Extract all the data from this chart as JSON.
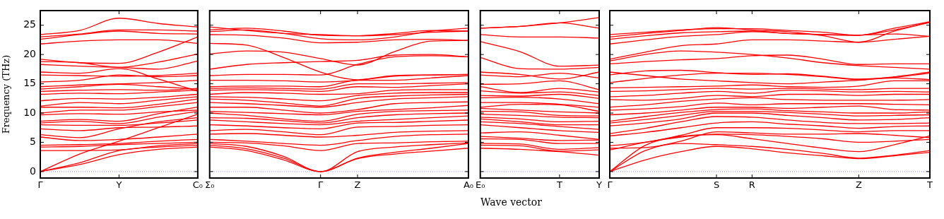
{
  "chart_data": [
    {
      "type": "line",
      "ylabel": "Frequency (THz)",
      "categories": [
        "Γ",
        null,
        "Y",
        null,
        "C₀"
      ],
      "ylim": [
        -1.1,
        27.5
      ],
      "yticks": [
        0,
        5,
        10,
        15,
        20,
        25
      ],
      "grid": false,
      "legend": false,
      "marker": "none",
      "line_style": "solid",
      "ref_lines": [
        {
          "axis": "y",
          "value": 0,
          "color": "#6666ff",
          "line_style": "dotted"
        }
      ],
      "series": [
        {
          "color": "#ff0000",
          "values": [
            0,
            1.2,
            2.9,
            3.8,
            4.2
          ]
        },
        {
          "color": "#ff0000",
          "values": [
            0,
            1.5,
            3.6,
            4.2,
            4.5
          ]
        },
        {
          "color": "#ff0000",
          "values": [
            0,
            3.0,
            5.2,
            7.5,
            9.8
          ]
        },
        {
          "color": "#ff0000",
          "values": [
            3.6,
            3.6,
            3.7,
            4.4,
            4.8
          ]
        },
        {
          "color": "#ff0000",
          "values": [
            4.2,
            4.3,
            4.6,
            4.8,
            5.0
          ]
        },
        {
          "color": "#ff0000",
          "values": [
            4.5,
            4.6,
            4.8,
            5.2,
            5.5
          ]
        },
        {
          "color": "#ff0000",
          "values": [
            5.9,
            5.3,
            5.5,
            5.9,
            6.4
          ]
        },
        {
          "color": "#ff0000",
          "values": [
            6.3,
            5.8,
            7.3,
            8.5,
            9.2
          ]
        },
        {
          "color": "#ff0000",
          "values": [
            7.3,
            7.0,
            7.5,
            7.6,
            7.8
          ]
        },
        {
          "color": "#ff0000",
          "values": [
            8.0,
            7.9,
            7.9,
            8.3,
            8.8
          ]
        },
        {
          "color": "#ff0000",
          "values": [
            8.3,
            8.6,
            8.2,
            9.3,
            10.3
          ]
        },
        {
          "color": "#ff0000",
          "values": [
            8.6,
            8.9,
            8.6,
            9.9,
            11.0
          ]
        },
        {
          "color": "#ff0000",
          "values": [
            9.7,
            9.9,
            9.8,
            10.2,
            10.5
          ]
        },
        {
          "color": "#ff0000",
          "values": [
            10.0,
            10.5,
            10.5,
            11.1,
            11.8
          ]
        },
        {
          "color": "#ff0000",
          "values": [
            11.0,
            11.0,
            10.9,
            11.5,
            12.4
          ]
        },
        {
          "color": "#ff0000",
          "values": [
            11.2,
            11.8,
            11.6,
            12.2,
            12.8
          ]
        },
        {
          "color": "#ff0000",
          "values": [
            12.1,
            12.5,
            12.4,
            12.7,
            13.2
          ]
        },
        {
          "color": "#ff0000",
          "values": [
            13.2,
            13.4,
            13.3,
            13.6,
            13.9
          ]
        },
        {
          "color": "#ff0000",
          "values": [
            13.7,
            13.9,
            14.0,
            13.9,
            14.2
          ]
        },
        {
          "color": "#ff0000",
          "values": [
            14.1,
            14.5,
            14.9,
            14.5,
            14.1
          ]
        },
        {
          "color": "#ff0000",
          "values": [
            14.5,
            14.8,
            15.0,
            15.2,
            15.6
          ]
        },
        {
          "color": "#ff0000",
          "values": [
            15.3,
            15.6,
            16.5,
            16.2,
            16.4
          ]
        },
        {
          "color": "#ff0000",
          "values": [
            16.5,
            16.4,
            16.3,
            16.4,
            16.8
          ]
        },
        {
          "color": "#ff0000",
          "values": [
            17.0,
            16.8,
            17.6,
            15.8,
            13.7
          ]
        },
        {
          "color": "#ff0000",
          "values": [
            18.3,
            18.0,
            17.8,
            17.5,
            18.9
          ]
        },
        {
          "color": "#ff0000",
          "values": [
            18.8,
            18.6,
            17.8,
            18.7,
            20.1
          ]
        },
        {
          "color": "#ff0000",
          "values": [
            19.2,
            18.6,
            18.5,
            20.4,
            23.0
          ]
        },
        {
          "color": "#ff0000",
          "values": [
            21.8,
            22.3,
            22.5,
            22.5,
            21.9
          ]
        },
        {
          "color": "#ff0000",
          "values": [
            22.6,
            23.4,
            24.0,
            23.6,
            23.5
          ]
        },
        {
          "color": "#ff0000",
          "values": [
            23.0,
            23.5,
            24.2,
            24.2,
            24.0
          ]
        },
        {
          "color": "#ff0000",
          "values": [
            23.4,
            24.1,
            26.2,
            25.3,
            24.7
          ]
        }
      ]
    },
    {
      "type": "line",
      "categories": [
        "Σ₀",
        null,
        null,
        "Γ",
        "Z",
        null,
        null,
        "A₀"
      ],
      "ylim": [
        -1.1,
        27.5
      ],
      "yticks": [
        0,
        5,
        10,
        15,
        20,
        25
      ],
      "tick_labels": "x",
      "grid": false,
      "legend": false,
      "marker": "none",
      "line_style": "solid",
      "ref_lines": [
        {
          "axis": "y",
          "value": 0,
          "color": "#6666ff",
          "line_style": "dotted"
        }
      ],
      "series": [
        {
          "color": "#ff0000",
          "values": [
            4.2,
            3.6,
            2.0,
            0,
            2.2,
            3.0,
            3.5,
            4.0
          ]
        },
        {
          "color": "#ff0000",
          "values": [
            4.5,
            3.9,
            2.3,
            0,
            2.3,
            3.3,
            4.0,
            4.8
          ]
        },
        {
          "color": "#ff0000",
          "values": [
            4.8,
            4.3,
            2.6,
            0,
            3.4,
            4.2,
            4.6,
            4.9
          ]
        },
        {
          "color": "#ff0000",
          "values": [
            5.0,
            4.9,
            4.4,
            3.6,
            4.8,
            4.9,
            5.1,
            5.2
          ]
        },
        {
          "color": "#ff0000",
          "values": [
            5.5,
            5.2,
            4.8,
            4.5,
            5.3,
            6.0,
            6.3,
            6.4
          ]
        },
        {
          "color": "#ff0000",
          "values": [
            6.4,
            6.5,
            6.2,
            5.9,
            6.2,
            6.7,
            6.9,
            7.0
          ]
        },
        {
          "color": "#ff0000",
          "values": [
            7.0,
            7.2,
            6.8,
            6.3,
            7.6,
            7.7,
            7.9,
            8.0
          ]
        },
        {
          "color": "#ff0000",
          "values": [
            8.0,
            7.8,
            7.5,
            7.3,
            8.3,
            8.4,
            8.6,
            8.8
          ]
        },
        {
          "color": "#ff0000",
          "values": [
            8.8,
            8.5,
            8.2,
            8.0,
            8.6,
            8.9,
            9.2,
            9.5
          ]
        },
        {
          "color": "#ff0000",
          "values": [
            9.2,
            9.1,
            8.7,
            8.3,
            9.2,
            9.7,
            9.9,
            10.0
          ]
        },
        {
          "color": "#ff0000",
          "values": [
            10.0,
            9.6,
            9.0,
            8.6,
            9.8,
            10.3,
            10.4,
            10.5
          ]
        },
        {
          "color": "#ff0000",
          "values": [
            10.3,
            10.1,
            9.9,
            9.7,
            10.3,
            10.6,
            10.9,
            11.3
          ]
        },
        {
          "color": "#ff0000",
          "values": [
            11.0,
            11.0,
            10.5,
            10.0,
            10.6,
            11.6,
            11.8,
            11.9
          ]
        },
        {
          "color": "#ff0000",
          "values": [
            11.8,
            11.6,
            11.3,
            11.0,
            11.8,
            12.4,
            12.6,
            12.8
          ]
        },
        {
          "color": "#ff0000",
          "values": [
            12.4,
            12.2,
            11.7,
            11.2,
            12.5,
            12.9,
            13.1,
            13.2
          ]
        },
        {
          "color": "#ff0000",
          "values": [
            12.8,
            12.7,
            12.4,
            12.1,
            13.0,
            13.4,
            13.5,
            13.5
          ]
        },
        {
          "color": "#ff0000",
          "values": [
            13.2,
            13.5,
            13.4,
            13.2,
            13.3,
            13.9,
            14.0,
            14.0
          ]
        },
        {
          "color": "#ff0000",
          "values": [
            13.9,
            14.0,
            13.9,
            13.7,
            14.5,
            14.4,
            14.7,
            15.0
          ]
        },
        {
          "color": "#ff0000",
          "values": [
            14.2,
            14.3,
            14.2,
            14.1,
            15.0,
            15.0,
            15.1,
            15.2
          ]
        },
        {
          "color": "#ff0000",
          "values": [
            14.5,
            14.6,
            14.6,
            14.5,
            15.6,
            15.6,
            16.0,
            16.4
          ]
        },
        {
          "color": "#ff0000",
          "values": [
            15.6,
            15.6,
            15.5,
            15.3,
            15.6,
            16.4,
            16.5,
            16.6
          ]
        },
        {
          "color": "#ff0000",
          "values": [
            16.4,
            16.6,
            16.6,
            16.5,
            18.3,
            19.6,
            19.8,
            19.6
          ]
        },
        {
          "color": "#ff0000",
          "values": [
            17.5,
            18.3,
            18.6,
            18.8,
            19.0,
            19.9,
            20.0,
            19.6
          ]
        },
        {
          "color": "#ff0000",
          "values": [
            20.1,
            20.6,
            20.4,
            19.3,
            18.2,
            20.5,
            22.3,
            22.4
          ]
        },
        {
          "color": "#ff0000",
          "values": [
            21.9,
            21.6,
            19.5,
            17.0,
            15.7,
            16.3,
            16.5,
            16.6
          ]
        },
        {
          "color": "#ff0000",
          "values": [
            23.4,
            23.3,
            22.8,
            22.0,
            22.1,
            22.5,
            22.6,
            22.4
          ]
        },
        {
          "color": "#ff0000",
          "values": [
            23.9,
            24.2,
            23.6,
            22.7,
            22.5,
            23.0,
            24.0,
            24.5
          ]
        },
        {
          "color": "#ff0000",
          "values": [
            24.2,
            24.5,
            24.0,
            23.3,
            23.2,
            23.6,
            24.1,
            24.0
          ]
        },
        {
          "color": "#ff0000",
          "values": [
            24.7,
            24.1,
            23.6,
            23.4,
            23.2,
            23.4,
            23.8,
            24.0
          ]
        }
      ]
    },
    {
      "type": "line",
      "xlabel": "Wave vector",
      "categories": [
        "E₀",
        null,
        "T",
        "Y"
      ],
      "ylim": [
        -1.1,
        27.5
      ],
      "yticks": [
        0,
        5,
        10,
        15,
        20,
        25
      ],
      "tick_labels": "x",
      "grid": false,
      "legend": false,
      "marker": "none",
      "line_style": "solid",
      "ref_lines": [
        {
          "axis": "y",
          "value": 0,
          "color": "#6666ff",
          "line_style": "dotted"
        }
      ],
      "series": [
        {
          "color": "#ff0000",
          "values": [
            4.0,
            3.8,
            3.4,
            2.8
          ]
        },
        {
          "color": "#ff0000",
          "values": [
            4.5,
            4.4,
            3.5,
            3.7
          ]
        },
        {
          "color": "#ff0000",
          "values": [
            4.8,
            4.7,
            3.8,
            4.1
          ]
        },
        {
          "color": "#ff0000",
          "values": [
            5.6,
            5.5,
            4.8,
            4.8
          ]
        },
        {
          "color": "#ff0000",
          "values": [
            6.0,
            5.7,
            5.3,
            5.4
          ]
        },
        {
          "color": "#ff0000",
          "values": [
            6.6,
            6.8,
            6.2,
            5.5
          ]
        },
        {
          "color": "#ff0000",
          "values": [
            8.0,
            7.5,
            7.0,
            6.7
          ]
        },
        {
          "color": "#ff0000",
          "values": [
            8.5,
            8.2,
            7.7,
            7.2
          ]
        },
        {
          "color": "#ff0000",
          "values": [
            9.0,
            8.5,
            8.0,
            8.0
          ]
        },
        {
          "color": "#ff0000",
          "values": [
            9.3,
            9.0,
            8.5,
            8.6
          ]
        },
        {
          "color": "#ff0000",
          "values": [
            9.8,
            9.6,
            9.3,
            9.2
          ]
        },
        {
          "color": "#ff0000",
          "values": [
            10.3,
            10.2,
            9.6,
            9.5
          ]
        },
        {
          "color": "#ff0000",
          "values": [
            10.8,
            10.5,
            10.2,
            10.0
          ]
        },
        {
          "color": "#ff0000",
          "values": [
            11.0,
            11.5,
            11.4,
            10.3
          ]
        },
        {
          "color": "#ff0000",
          "values": [
            11.8,
            11.8,
            11.5,
            11.0
          ]
        },
        {
          "color": "#ff0000",
          "values": [
            12.6,
            12.7,
            12.4,
            11.6
          ]
        },
        {
          "color": "#ff0000",
          "values": [
            13.0,
            12.9,
            13.2,
            12.5
          ]
        },
        {
          "color": "#ff0000",
          "values": [
            13.8,
            13.4,
            13.6,
            13.0
          ]
        },
        {
          "color": "#ff0000",
          "values": [
            14.5,
            13.5,
            14.2,
            13.6
          ]
        },
        {
          "color": "#ff0000",
          "values": [
            14.9,
            15.0,
            15.5,
            14.0
          ]
        },
        {
          "color": "#ff0000",
          "values": [
            16.5,
            16.2,
            16.8,
            16.0
          ]
        },
        {
          "color": "#ff0000",
          "values": [
            17.0,
            16.6,
            15.8,
            17.0
          ]
        },
        {
          "color": "#ff0000",
          "values": [
            19.5,
            17.6,
            17.5,
            17.8
          ]
        },
        {
          "color": "#ff0000",
          "values": [
            22.2,
            20.5,
            18.0,
            18.2
          ]
        },
        {
          "color": "#ff0000",
          "values": [
            23.4,
            23.0,
            23.0,
            22.8
          ]
        },
        {
          "color": "#ff0000",
          "values": [
            24.5,
            24.8,
            25.4,
            24.5
          ]
        },
        {
          "color": "#ff0000",
          "values": [
            24.5,
            24.8,
            25.4,
            26.3
          ]
        }
      ]
    },
    {
      "type": "line",
      "categories": [
        "Γ",
        null,
        null,
        "S",
        "R",
        null,
        null,
        "Z",
        null,
        "T"
      ],
      "ylim": [
        -1.1,
        27.5
      ],
      "yticks": [
        0,
        5,
        10,
        15,
        20,
        25
      ],
      "tick_labels": "x",
      "grid": false,
      "legend": false,
      "marker": "none",
      "line_style": "solid",
      "ref_lines": [
        {
          "axis": "y",
          "value": 0,
          "color": "#6666ff",
          "line_style": "dotted"
        }
      ],
      "series": [
        {
          "color": "#ff0000",
          "values": [
            0,
            2.0,
            3.4,
            4.3,
            3.9,
            3.2,
            2.7,
            2.2,
            2.7,
            3.3
          ]
        },
        {
          "color": "#ff0000",
          "values": [
            0,
            3.6,
            4.8,
            4.6,
            4.3,
            3.8,
            3.1,
            2.3,
            2.8,
            3.6
          ]
        },
        {
          "color": "#ff0000",
          "values": [
            0,
            4.5,
            6.0,
            6.3,
            5.6,
            4.8,
            4.0,
            3.4,
            4.6,
            6.1
          ]
        },
        {
          "color": "#ff0000",
          "values": [
            3.7,
            5.0,
            5.9,
            6.4,
            6.3,
            6.0,
            5.6,
            5.0,
            5.2,
            5.5
          ]
        },
        {
          "color": "#ff0000",
          "values": [
            4.0,
            4.1,
            5.2,
            6.8,
            6.6,
            6.4,
            6.4,
            6.5,
            6.2,
            5.8
          ]
        },
        {
          "color": "#ff0000",
          "values": [
            4.4,
            5.0,
            6.2,
            7.5,
            7.5,
            7.4,
            7.1,
            6.8,
            7.0,
            7.0
          ]
        },
        {
          "color": "#ff0000",
          "values": [
            6.1,
            6.7,
            7.5,
            8.3,
            8.5,
            8.1,
            7.8,
            7.4,
            7.7,
            7.8
          ]
        },
        {
          "color": "#ff0000",
          "values": [
            6.5,
            7.4,
            8.5,
            9.4,
            9.3,
            8.8,
            8.4,
            8.2,
            8.2,
            8.3
          ]
        },
        {
          "color": "#ff0000",
          "values": [
            7.8,
            8.3,
            9.0,
            10.0,
            10.0,
            9.6,
            9.2,
            8.8,
            8.9,
            9.2
          ]
        },
        {
          "color": "#ff0000",
          "values": [
            8.3,
            8.9,
            9.6,
            10.3,
            10.3,
            10.1,
            9.8,
            9.5,
            9.6,
            9.7
          ]
        },
        {
          "color": "#ff0000",
          "values": [
            8.6,
            9.4,
            10.1,
            10.6,
            10.7,
            10.4,
            10.2,
            10.0,
            10.0,
            10.2
          ]
        },
        {
          "color": "#ff0000",
          "values": [
            9.7,
            10.0,
            10.5,
            11.0,
            11.0,
            10.8,
            11.0,
            11.2,
            10.6,
            10.5
          ]
        },
        {
          "color": "#ff0000",
          "values": [
            10.5,
            10.7,
            11.1,
            11.7,
            11.4,
            11.6,
            11.6,
            11.6,
            11.5,
            11.4
          ]
        },
        {
          "color": "#ff0000",
          "values": [
            11.0,
            11.4,
            12.0,
            12.4,
            12.6,
            12.3,
            12.2,
            12.2,
            12.2,
            12.3
          ]
        },
        {
          "color": "#ff0000",
          "values": [
            12.3,
            12.2,
            12.5,
            13.0,
            12.8,
            13.2,
            13.2,
            13.0,
            13.2,
            13.2
          ]
        },
        {
          "color": "#ff0000",
          "values": [
            12.8,
            13.0,
            13.4,
            13.7,
            13.4,
            13.9,
            13.8,
            13.6,
            13.7,
            13.6
          ]
        },
        {
          "color": "#ff0000",
          "values": [
            13.7,
            13.8,
            14.0,
            14.2,
            14.1,
            14.2,
            14.1,
            14.0,
            14.2,
            14.2
          ]
        },
        {
          "color": "#ff0000",
          "values": [
            14.3,
            14.4,
            14.5,
            14.6,
            14.8,
            14.5,
            14.4,
            14.6,
            15.5,
            15.5
          ]
        },
        {
          "color": "#ff0000",
          "values": [
            15.2,
            15.9,
            16.5,
            16.8,
            16.8,
            16.6,
            16.2,
            15.7,
            16.2,
            17.0
          ]
        },
        {
          "color": "#ff0000",
          "values": [
            17.0,
            16.4,
            15.8,
            15.5,
            15.2,
            15.0,
            15.3,
            15.6,
            16.0,
            15.7
          ]
        },
        {
          "color": "#ff0000",
          "values": [
            16.5,
            17.2,
            17.3,
            16.9,
            16.6,
            16.7,
            16.3,
            15.8,
            16.1,
            16.8
          ]
        },
        {
          "color": "#ff0000",
          "values": [
            18.4,
            18.8,
            19.1,
            19.3,
            19.8,
            19.9,
            19.2,
            18.3,
            18.4,
            18.4
          ]
        },
        {
          "color": "#ff0000",
          "values": [
            18.9,
            20.0,
            20.6,
            20.4,
            20.0,
            19.4,
            18.6,
            18.1,
            17.8,
            17.5
          ]
        },
        {
          "color": "#ff0000",
          "values": [
            19.2,
            20.4,
            21.5,
            21.8,
            22.5,
            22.5,
            22.3,
            22.1,
            22.6,
            23.1
          ]
        },
        {
          "color": "#ff0000",
          "values": [
            21.8,
            22.5,
            23.1,
            23.4,
            23.9,
            23.6,
            23.4,
            23.3,
            24.2,
            25.5
          ]
        },
        {
          "color": "#ff0000",
          "values": [
            22.6,
            23.2,
            23.7,
            23.9,
            24.0,
            23.6,
            23.4,
            23.3,
            23.5,
            23.1
          ]
        },
        {
          "color": "#ff0000",
          "values": [
            23.0,
            23.6,
            24.1,
            24.6,
            24.2,
            23.9,
            23.2,
            22.1,
            24.0,
            25.5
          ]
        },
        {
          "color": "#ff0000",
          "values": [
            23.4,
            23.8,
            24.2,
            24.4,
            24.4,
            24.1,
            23.8,
            23.3,
            24.5,
            25.6
          ]
        }
      ]
    }
  ]
}
